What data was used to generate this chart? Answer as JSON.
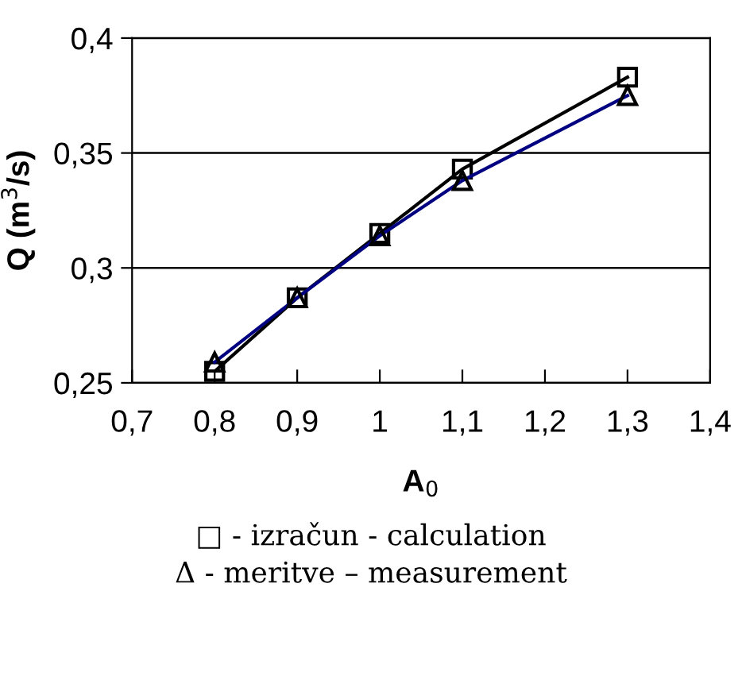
{
  "chart_data": {
    "type": "line",
    "xlabel": "A$_{0}$",
    "ylabel": "Q (m$^{3}$/s)",
    "x": [
      0.8,
      0.9,
      1.0,
      1.1,
      1.3
    ],
    "series": [
      {
        "color": "#000000",
        "marker": "square",
        "values": [
          0.255,
          0.287,
          0.315,
          0.343,
          0.383
        ]
      },
      {
        "color": "#000080",
        "marker": "triangle",
        "values": [
          0.259,
          0.287,
          0.314,
          0.338,
          0.375
        ]
      }
    ],
    "xlim": [
      0.7,
      1.4
    ],
    "xticks": [
      {
        "value": 0.7,
        "label": "0,7"
      },
      {
        "value": 0.8,
        "label": "0,8"
      },
      {
        "value": 0.9,
        "label": "0,9"
      },
      {
        "value": 1,
        "label": "1"
      },
      {
        "value": 1.1,
        "label": "1,1"
      },
      {
        "value": 1.2,
        "label": "1,2"
      },
      {
        "value": 1.3,
        "label": "1,3"
      },
      {
        "value": 1.4,
        "label": "1,4"
      }
    ],
    "ylim": [
      0.25,
      0.4
    ],
    "yticks": [
      {
        "value": 0.25,
        "label": "0,25"
      },
      {
        "value": 0.3,
        "label": "0,3"
      },
      {
        "value": 0.35,
        "label": "0,35"
      },
      {
        "value": 0.4,
        "label": "0,4"
      }
    ],
    "grid": "y",
    "annotations": [
      "□ - izračun - calculation",
      "Δ - meritve – measurement"
    ]
  }
}
